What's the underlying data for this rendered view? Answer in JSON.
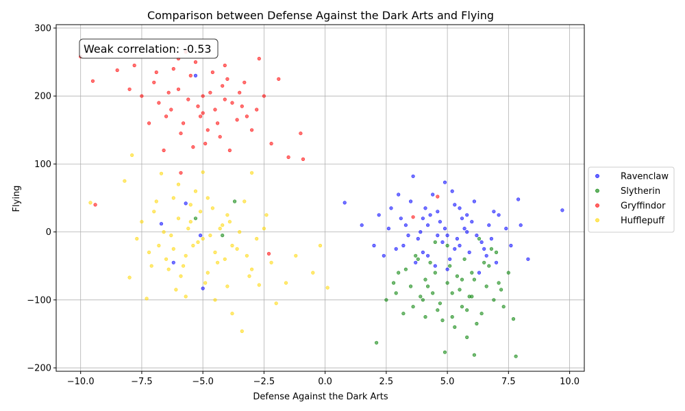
{
  "chart_data": {
    "type": "scatter",
    "title": "Comparison between Defense Against the Dark Arts and Flying",
    "xlabel": "Defense Against the Dark Arts",
    "ylabel": "Flying",
    "xlim": [
      -11,
      10.6
    ],
    "ylim": [
      -205,
      305
    ],
    "xticks": [
      -10.0,
      -7.5,
      -5.0,
      -2.5,
      0.0,
      2.5,
      5.0,
      7.5,
      10.0
    ],
    "xtick_labels": [
      "−10.0",
      "−7.5",
      "−5.0",
      "−2.5",
      "0.0",
      "2.5",
      "5.0",
      "7.5",
      "10.0"
    ],
    "yticks": [
      -200,
      -100,
      0,
      100,
      200,
      300
    ],
    "ytick_labels": [
      "−200",
      "−100",
      "0",
      "100",
      "200",
      "300"
    ],
    "grid": true,
    "legend_position": "right-outside",
    "annotation": "Weak correlation: -0.53",
    "series": [
      {
        "name": "Ravenclaw",
        "color": "#0000ff",
        "points": [
          [
            4.2,
            10
          ],
          [
            3.1,
            20
          ],
          [
            5.0,
            -5
          ],
          [
            4.6,
            30
          ],
          [
            5.5,
            -20
          ],
          [
            6.0,
            15
          ],
          [
            3.8,
            -10
          ],
          [
            4.9,
            5
          ],
          [
            5.3,
            40
          ],
          [
            2.7,
            35
          ],
          [
            6.4,
            -15
          ],
          [
            7.1,
            25
          ],
          [
            3.5,
            45
          ],
          [
            4.0,
            -30
          ],
          [
            5.8,
            0
          ],
          [
            6.7,
            10
          ],
          [
            2.9,
            -25
          ],
          [
            4.4,
            55
          ],
          [
            5.1,
            -40
          ],
          [
            7.6,
            -20
          ],
          [
            3.3,
            10
          ],
          [
            4.8,
            -15
          ],
          [
            5.6,
            20
          ],
          [
            6.2,
            -5
          ],
          [
            4.1,
            35
          ],
          [
            3.0,
            55
          ],
          [
            5.9,
            -30
          ],
          [
            6.9,
            30
          ],
          [
            2.4,
            -35
          ],
          [
            8.0,
            10
          ],
          [
            4.5,
            -50
          ],
          [
            5.2,
            60
          ],
          [
            3.7,
            -45
          ],
          [
            6.6,
            -35
          ],
          [
            7.4,
            5
          ],
          [
            2.2,
            25
          ],
          [
            4.7,
            15
          ],
          [
            5.4,
            -10
          ],
          [
            6.1,
            45
          ],
          [
            3.9,
            0
          ],
          [
            9.7,
            32
          ],
          [
            0.8,
            43
          ],
          [
            8.3,
            -40
          ],
          [
            1.5,
            10
          ],
          [
            3.6,
            82
          ],
          [
            4.9,
            73
          ],
          [
            2.0,
            -20
          ],
          [
            7.9,
            48
          ],
          [
            5.0,
            -55
          ],
          [
            6.3,
            -60
          ],
          [
            4.3,
            25
          ],
          [
            5.7,
            5
          ],
          [
            3.2,
            -20
          ],
          [
            6.8,
            -10
          ],
          [
            4.6,
            -5
          ],
          [
            5.5,
            35
          ],
          [
            7.0,
            -45
          ],
          [
            2.6,
            5
          ],
          [
            4.0,
            20
          ],
          [
            5.3,
            -25
          ],
          [
            -5.0,
            -83
          ],
          [
            -6.7,
            12
          ],
          [
            -6.2,
            -45
          ],
          [
            -5.7,
            42
          ],
          [
            -5.3,
            230
          ],
          [
            -5.1,
            -5
          ],
          [
            6.5,
            -25
          ],
          [
            3.4,
            -5
          ],
          [
            4.2,
            -35
          ],
          [
            5.8,
            25
          ]
        ]
      },
      {
        "name": "Slytherin",
        "color": "#008000",
        "points": [
          [
            4.5,
            -60
          ],
          [
            5.2,
            -90
          ],
          [
            6.1,
            -70
          ],
          [
            3.8,
            -40
          ],
          [
            5.6,
            -110
          ],
          [
            6.7,
            -50
          ],
          [
            4.0,
            -100
          ],
          [
            5.0,
            -75
          ],
          [
            7.2,
            -85
          ],
          [
            3.3,
            -55
          ],
          [
            4.8,
            -130
          ],
          [
            5.9,
            -95
          ],
          [
            6.4,
            -120
          ],
          [
            3.5,
            -80
          ],
          [
            4.3,
            -45
          ],
          [
            5.4,
            -65
          ],
          [
            6.9,
            -100
          ],
          [
            2.8,
            -75
          ],
          [
            7.5,
            -60
          ],
          [
            4.6,
            -115
          ],
          [
            5.7,
            -40
          ],
          [
            6.2,
            -135
          ],
          [
            3.9,
            -95
          ],
          [
            5.1,
            -50
          ],
          [
            6.6,
            -80
          ],
          [
            4.1,
            -70
          ],
          [
            7.0,
            -30
          ],
          [
            5.5,
            -85
          ],
          [
            3.6,
            -110
          ],
          [
            6.0,
            -60
          ],
          [
            2.1,
            -163
          ],
          [
            6.1,
            -181
          ],
          [
            7.8,
            -183
          ],
          [
            4.9,
            -177
          ],
          [
            5.8,
            -155
          ],
          [
            2.5,
            -100
          ],
          [
            7.7,
            -128
          ],
          [
            3.2,
            -120
          ],
          [
            5.3,
            -140
          ],
          [
            6.5,
            -45
          ],
          [
            4.4,
            -90
          ],
          [
            5.0,
            -20
          ],
          [
            6.3,
            -10
          ],
          [
            4.7,
            -105
          ],
          [
            5.6,
            -70
          ],
          [
            7.3,
            -110
          ],
          [
            3.0,
            -60
          ],
          [
            4.2,
            -80
          ],
          [
            6.8,
            -25
          ],
          [
            5.2,
            -125
          ],
          [
            -5.3,
            20
          ],
          [
            -3.7,
            45
          ],
          [
            -4.2,
            -5
          ],
          [
            3.7,
            -35
          ],
          [
            4.5,
            -15
          ],
          [
            6.0,
            -95
          ],
          [
            5.8,
            -115
          ],
          [
            4.1,
            -125
          ],
          [
            7.1,
            -75
          ],
          [
            2.9,
            -90
          ]
        ]
      },
      {
        "name": "Gryffindor",
        "color": "#ff0000",
        "points": [
          [
            -5.0,
            200
          ],
          [
            -6.0,
            210
          ],
          [
            -4.5,
            180
          ],
          [
            -5.5,
            230
          ],
          [
            -3.8,
            190
          ],
          [
            -6.5,
            170
          ],
          [
            -4.2,
            215
          ],
          [
            -5.8,
            160
          ],
          [
            -3.5,
            205
          ],
          [
            -7.0,
            220
          ],
          [
            -4.8,
            150
          ],
          [
            -5.2,
            185
          ],
          [
            -6.2,
            240
          ],
          [
            -3.2,
            170
          ],
          [
            -4.0,
            225
          ],
          [
            -5.6,
            195
          ],
          [
            -6.8,
            190
          ],
          [
            -2.8,
            180
          ],
          [
            -7.5,
            200
          ],
          [
            -4.4,
            160
          ],
          [
            -5.3,
            250
          ],
          [
            -3.0,
            150
          ],
          [
            -6.3,
            180
          ],
          [
            -4.6,
            235
          ],
          [
            -5.9,
            145
          ],
          [
            -3.6,
            165
          ],
          [
            -7.2,
            160
          ],
          [
            -2.5,
            200
          ],
          [
            -4.9,
            130
          ],
          [
            -6.0,
            255
          ],
          [
            -10.0,
            258
          ],
          [
            -9.5,
            222
          ],
          [
            -8.5,
            238
          ],
          [
            -1.0,
            145
          ],
          [
            -0.9,
            107
          ],
          [
            -1.5,
            110
          ],
          [
            -2.2,
            130
          ],
          [
            -3.9,
            120
          ],
          [
            -5.4,
            125
          ],
          [
            -6.6,
            120
          ],
          [
            -2.7,
            255
          ],
          [
            -4.1,
            245
          ],
          [
            -5.7,
            265
          ],
          [
            -8.0,
            210
          ],
          [
            -7.8,
            245
          ],
          [
            -1.9,
            225
          ],
          [
            -3.3,
            220
          ],
          [
            -4.3,
            140
          ],
          [
            -5.1,
            170
          ],
          [
            -6.9,
            235
          ],
          [
            -9.4,
            40
          ],
          [
            -5.9,
            87
          ],
          [
            3.6,
            22
          ],
          [
            4.6,
            52
          ],
          [
            -2.3,
            -32
          ],
          [
            -4.7,
            205
          ],
          [
            -3.4,
            185
          ],
          [
            -6.4,
            205
          ],
          [
            -5.0,
            175
          ],
          [
            -4.1,
            195
          ]
        ]
      },
      {
        "name": "Hufflepuff",
        "color": "#ffd700",
        "points": [
          [
            -5.0,
            -10
          ],
          [
            -6.0,
            20
          ],
          [
            -4.5,
            -30
          ],
          [
            -5.5,
            40
          ],
          [
            -3.8,
            -20
          ],
          [
            -6.5,
            -40
          ],
          [
            -4.2,
            10
          ],
          [
            -5.8,
            -50
          ],
          [
            -3.5,
            0
          ],
          [
            -7.0,
            30
          ],
          [
            -4.8,
            -60
          ],
          [
            -5.2,
            -15
          ],
          [
            -6.2,
            50
          ],
          [
            -3.2,
            -35
          ],
          [
            -4.0,
            25
          ],
          [
            -5.6,
            5
          ],
          [
            -6.8,
            -20
          ],
          [
            -2.8,
            -10
          ],
          [
            -7.5,
            15
          ],
          [
            -4.4,
            -45
          ],
          [
            -5.3,
            60
          ],
          [
            -3.0,
            -55
          ],
          [
            -6.3,
            -5
          ],
          [
            -4.6,
            35
          ],
          [
            -5.9,
            -65
          ],
          [
            -3.6,
            -25
          ],
          [
            -7.2,
            -30
          ],
          [
            -2.5,
            5
          ],
          [
            -4.9,
            -75
          ],
          [
            -6.0,
            70
          ],
          [
            -9.6,
            43
          ],
          [
            -8.2,
            75
          ],
          [
            -7.9,
            113
          ],
          [
            -6.7,
            86
          ],
          [
            -5.0,
            88
          ],
          [
            -3.0,
            87
          ],
          [
            -0.2,
            -20
          ],
          [
            0.1,
            -82
          ],
          [
            -1.2,
            -35
          ],
          [
            -0.5,
            -60
          ],
          [
            -3.4,
            -146
          ],
          [
            -3.8,
            -120
          ],
          [
            -2.0,
            -105
          ],
          [
            -4.5,
            -100
          ],
          [
            -6.1,
            -85
          ],
          [
            -7.3,
            -98
          ],
          [
            -8.0,
            -67
          ],
          [
            -2.7,
            -78
          ],
          [
            -5.7,
            -95
          ],
          [
            -1.6,
            -75
          ],
          [
            -4.1,
            -40
          ],
          [
            -5.4,
            -20
          ],
          [
            -3.9,
            15
          ],
          [
            -6.6,
            0
          ],
          [
            -4.7,
            -5
          ],
          [
            -5.1,
            30
          ],
          [
            -2.2,
            -45
          ],
          [
            -7.7,
            -10
          ],
          [
            -3.3,
            45
          ],
          [
            -6.4,
            -55
          ],
          [
            -4.3,
            5
          ],
          [
            -5.7,
            -35
          ],
          [
            -3.1,
            -65
          ],
          [
            -6.9,
            45
          ],
          [
            -4.0,
            -80
          ],
          [
            -5.5,
            15
          ],
          [
            -2.4,
            25
          ],
          [
            -7.1,
            -50
          ],
          [
            -4.8,
            50
          ],
          [
            -6.2,
            -25
          ]
        ]
      }
    ]
  }
}
